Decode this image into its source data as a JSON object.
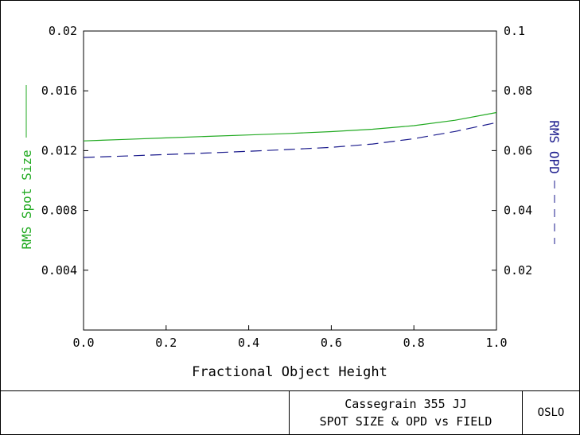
{
  "chart_data": {
    "type": "line",
    "xlabel": "Fractional Object Height",
    "xlim": [
      0,
      1
    ],
    "xticks": [
      "0.0",
      "0.2",
      "0.4",
      "0.6",
      "0.8",
      "1.0"
    ],
    "ylabel_left": "RMS Spot Size",
    "ylim_left": [
      0,
      0.02
    ],
    "yticks_left": [
      "0.004",
      "0.008",
      "0.012",
      "0.016",
      "0.02"
    ],
    "ylabel_right": "RMS OPD",
    "ylim_right": [
      0,
      0.1
    ],
    "yticks_right": [
      "0.02",
      "0.04",
      "0.06",
      "0.08",
      "0.1"
    ],
    "grid": false,
    "series": [
      {
        "name": "RMS Spot Size",
        "axis": "left",
        "style": "solid",
        "color": "#22aa22",
        "x": [
          0,
          0.1,
          0.2,
          0.3,
          0.4,
          0.5,
          0.6,
          0.7,
          0.8,
          0.9,
          1.0
        ],
        "y": [
          0.01265,
          0.01275,
          0.01285,
          0.01295,
          0.01305,
          0.01315,
          0.01327,
          0.01343,
          0.01367,
          0.01403,
          0.01455
        ]
      },
      {
        "name": "RMS OPD",
        "axis": "right",
        "style": "dashed",
        "color": "#1a1a8c",
        "x": [
          0,
          0.1,
          0.2,
          0.3,
          0.4,
          0.5,
          0.6,
          0.7,
          0.8,
          0.9,
          1.0
        ],
        "y": [
          0.0577,
          0.0582,
          0.0587,
          0.0592,
          0.0598,
          0.0604,
          0.0611,
          0.0622,
          0.064,
          0.0664,
          0.0694
        ]
      }
    ]
  },
  "footer": {
    "title_line1": "Cassegrain 355 JJ",
    "title_line2": "SPOT SIZE & OPD vs FIELD",
    "program": "OSLO"
  }
}
